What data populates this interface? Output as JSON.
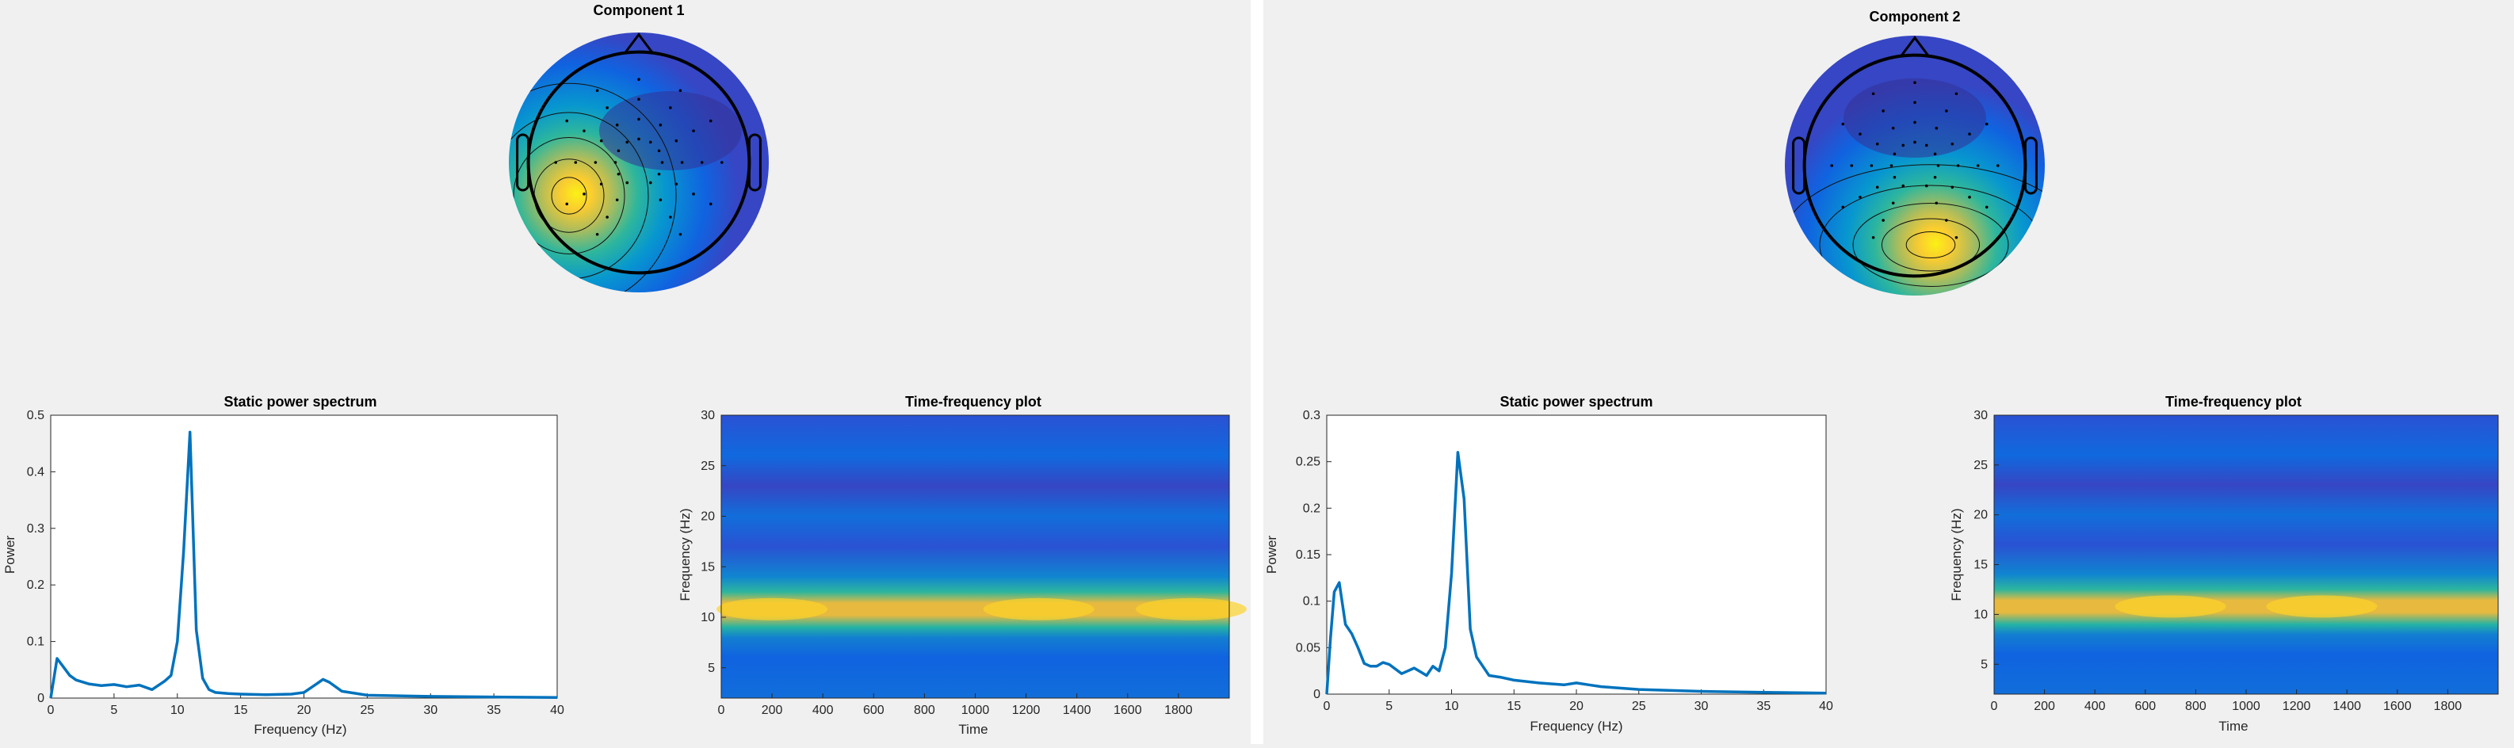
{
  "panels": [
    {
      "topomap": {
        "title": "Component 1",
        "hotspot": "left-posterior",
        "colormap": "parula"
      },
      "chart_data": [
        {
          "type": "line",
          "title": "Static power spectrum",
          "xlabel": "Frequency (Hz)",
          "ylabel": "Power",
          "xlim": [
            0,
            40
          ],
          "ylim": [
            0,
            0.5
          ],
          "xticks": [
            0,
            5,
            10,
            15,
            20,
            25,
            30,
            35,
            40
          ],
          "yticks": [
            0,
            0.1,
            0.2,
            0.3,
            0.4,
            0.5
          ],
          "ytick_labels": [
            "0",
            "0.1",
            "0.2",
            "0.3",
            "0.4",
            "0.5"
          ],
          "series": [
            {
              "color": "#0072BD",
              "x": [
                0,
                0.5,
                1,
                1.5,
                2,
                3,
                4,
                5,
                6,
                7,
                8,
                9,
                9.5,
                10,
                10.5,
                11,
                11.5,
                12,
                12.5,
                13,
                14,
                15,
                17,
                19,
                20,
                21,
                21.5,
                22,
                23,
                25,
                30,
                35,
                40
              ],
              "y": [
                0.0,
                0.07,
                0.055,
                0.04,
                0.032,
                0.025,
                0.022,
                0.024,
                0.02,
                0.023,
                0.015,
                0.03,
                0.04,
                0.1,
                0.26,
                0.47,
                0.12,
                0.035,
                0.015,
                0.01,
                0.008,
                0.007,
                0.006,
                0.007,
                0.01,
                0.025,
                0.033,
                0.028,
                0.012,
                0.005,
                0.003,
                0.002,
                0.001
              ]
            }
          ]
        },
        {
          "type": "heatmap",
          "title": "Time-frequency plot",
          "xlabel": "Time",
          "ylabel": "Frequency (Hz)",
          "xlim": [
            0,
            2000
          ],
          "ylim": [
            2,
            30
          ],
          "xticks": [
            0,
            200,
            400,
            600,
            800,
            1000,
            1200,
            1400,
            1600,
            1800
          ],
          "yticks": [
            5,
            10,
            15,
            20,
            25,
            30
          ],
          "band_center_hz": 10.8,
          "peak_times": [
            200,
            1250,
            1850
          ],
          "colormap": "parula"
        }
      ]
    },
    {
      "topomap": {
        "title": "Component 2",
        "hotspot": "posterior",
        "colormap": "parula"
      },
      "chart_data": [
        {
          "type": "line",
          "title": "Static power spectrum",
          "xlabel": "Frequency (Hz)",
          "ylabel": "Power",
          "xlim": [
            0,
            40
          ],
          "ylim": [
            0,
            0.3
          ],
          "xticks": [
            0,
            5,
            10,
            15,
            20,
            25,
            30,
            35,
            40
          ],
          "yticks": [
            0,
            0.05,
            0.1,
            0.15,
            0.2,
            0.25,
            0.3
          ],
          "ytick_labels": [
            "0",
            "0.05",
            "0.1",
            "0.15",
            "0.2",
            "0.25",
            "0.3"
          ],
          "series": [
            {
              "color": "#0072BD",
              "x": [
                0,
                0.3,
                0.6,
                1,
                1.5,
                2,
                2.5,
                3,
                3.5,
                4,
                4.5,
                5,
                6,
                6.5,
                7,
                7.5,
                8,
                8.5,
                9,
                9.5,
                10,
                10.5,
                11,
                11.5,
                12,
                12.5,
                13,
                14,
                15,
                17,
                19,
                20,
                21,
                22,
                25,
                30,
                35,
                40
              ],
              "y": [
                0.0,
                0.06,
                0.11,
                0.12,
                0.075,
                0.065,
                0.05,
                0.033,
                0.03,
                0.03,
                0.034,
                0.032,
                0.022,
                0.025,
                0.028,
                0.024,
                0.02,
                0.03,
                0.025,
                0.05,
                0.13,
                0.26,
                0.21,
                0.07,
                0.04,
                0.03,
                0.02,
                0.018,
                0.015,
                0.012,
                0.01,
                0.012,
                0.01,
                0.008,
                0.005,
                0.003,
                0.002,
                0.001
              ]
            }
          ]
        },
        {
          "type": "heatmap",
          "title": "Time-frequency plot",
          "xlabel": "Time",
          "ylabel": "Frequency (Hz)",
          "xlim": [
            0,
            2000
          ],
          "ylim": [
            2,
            30
          ],
          "xticks": [
            0,
            200,
            400,
            600,
            800,
            1000,
            1200,
            1400,
            1600,
            1800
          ],
          "yticks": [
            5,
            10,
            15,
            20,
            25,
            30
          ],
          "band_center_hz": 10.8,
          "peak_times": [
            700,
            1300
          ],
          "colormap": "parula"
        }
      ]
    }
  ]
}
